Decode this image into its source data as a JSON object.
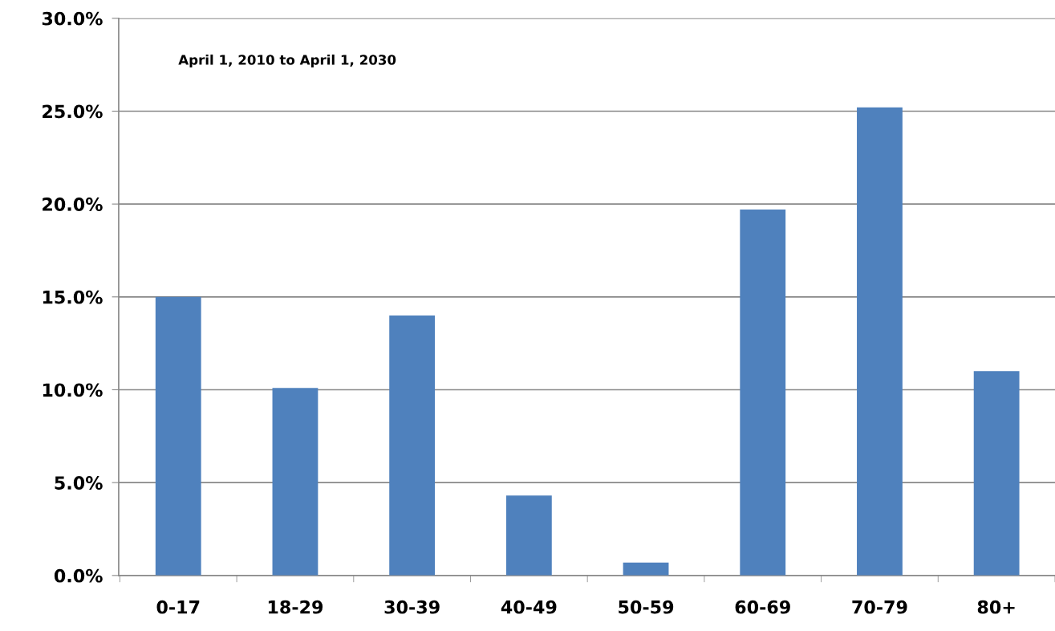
{
  "chart_data": {
    "type": "bar",
    "categories": [
      "0-17",
      "18-29",
      "30-39",
      "40-49",
      "50-59",
      "60-69",
      "70-79",
      "80+"
    ],
    "values": [
      15.0,
      10.1,
      14.0,
      4.3,
      0.7,
      19.7,
      25.2,
      11.0
    ],
    "color": "#4f81bd",
    "ylim": [
      0,
      30
    ],
    "yticks": [
      {
        "value": 0,
        "label": "0.0%"
      },
      {
        "value": 5,
        "label": "5.0%"
      },
      {
        "value": 10,
        "label": "10.0%"
      },
      {
        "value": 15,
        "label": "15.0%"
      },
      {
        "value": 20,
        "label": "20.0%"
      },
      {
        "value": 25,
        "label": "25.0%"
      },
      {
        "value": 30,
        "label": "30.0%"
      }
    ],
    "grid": "y",
    "legend": false,
    "annotations": [
      "April 1, 2010 to April 1, 2030"
    ]
  }
}
